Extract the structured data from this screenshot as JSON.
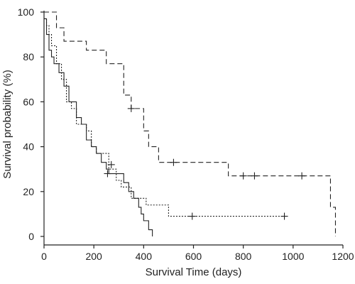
{
  "chart_data": {
    "type": "line",
    "title": "",
    "xlabel": "Survival Time (days)",
    "ylabel": "Survival probability (%)",
    "xlim": [
      0,
      1200
    ],
    "ylim": [
      0,
      100
    ],
    "xticks": [
      0,
      200,
      400,
      600,
      800,
      1000,
      1200
    ],
    "yticks": [
      0,
      20,
      40,
      60,
      80,
      100
    ],
    "step": true,
    "grid": false,
    "series": [
      {
        "line_style": "dashed",
        "x": [
          0,
          50,
          80,
          170,
          250,
          320,
          350,
          400,
          420,
          460,
          740,
          1150,
          1170
        ],
        "y": [
          100,
          93,
          87,
          83,
          77,
          63,
          57,
          47,
          40,
          33,
          27,
          13,
          0
        ],
        "censored": [
          [
            350,
            57
          ],
          [
            520,
            33
          ],
          [
            800,
            27
          ],
          [
            845,
            27
          ],
          [
            1035,
            27
          ]
        ]
      },
      {
        "line_style": "dotted",
        "x": [
          0,
          10,
          20,
          30,
          50,
          70,
          90,
          110,
          130,
          170,
          190,
          210,
          260,
          290,
          310,
          350,
          410,
          500,
          970
        ],
        "y": [
          97,
          94,
          90,
          85,
          77,
          70,
          60,
          57,
          50,
          47,
          40,
          37,
          30,
          25,
          22,
          17,
          14,
          9,
          9
        ],
        "censored": [
          [
            270,
            32
          ],
          [
            595,
            9
          ],
          [
            965,
            9
          ]
        ]
      },
      {
        "line_style": "solid",
        "x": [
          0,
          10,
          20,
          30,
          40,
          60,
          80,
          100,
          130,
          150,
          170,
          190,
          210,
          230,
          250,
          260,
          320,
          340,
          360,
          380,
          390,
          400,
          420,
          435
        ],
        "y": [
          97,
          90,
          83,
          80,
          77,
          73,
          67,
          60,
          53,
          50,
          43,
          40,
          37,
          33,
          30,
          28,
          24,
          20,
          17,
          13,
          10,
          7,
          3,
          0
        ],
        "censored": [
          [
            255,
            28
          ]
        ]
      }
    ]
  }
}
